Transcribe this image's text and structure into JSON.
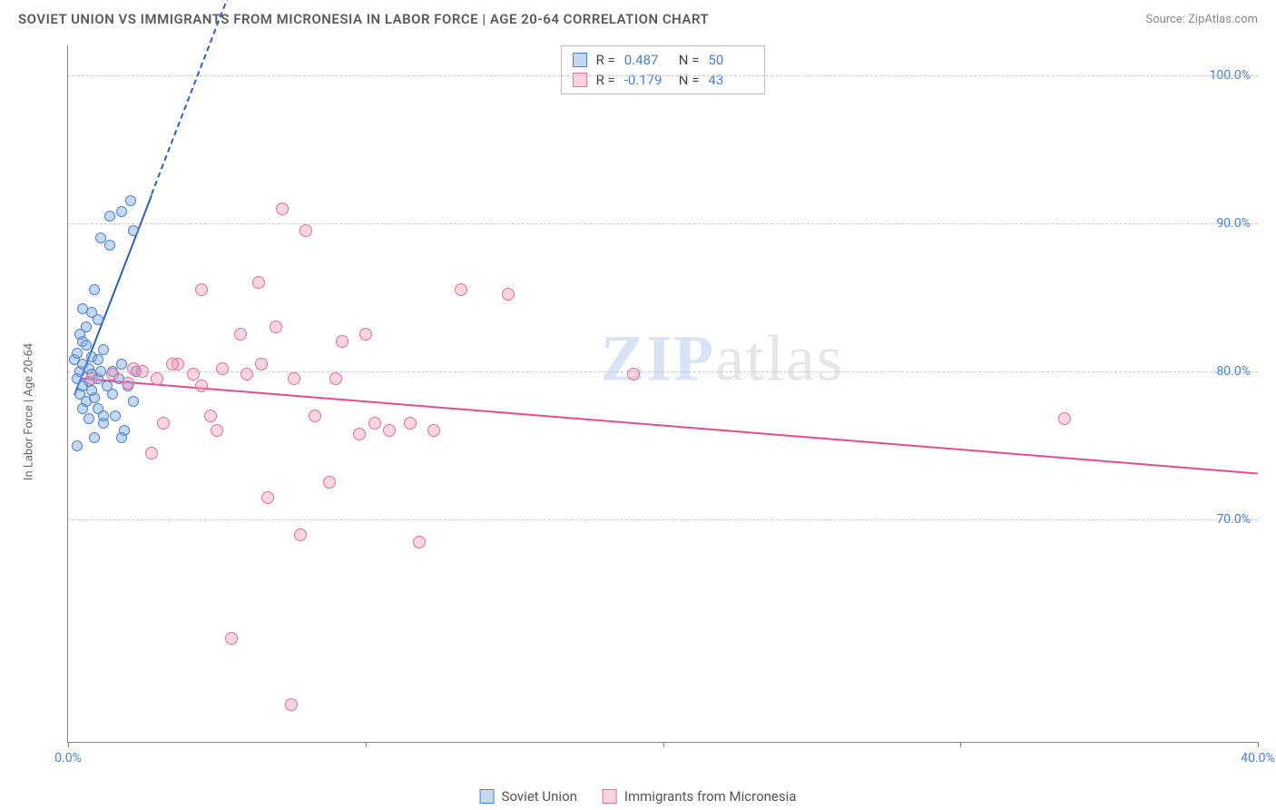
{
  "header": {
    "title": "SOVIET UNION VS IMMIGRANTS FROM MICRONESIA IN LABOR FORCE | AGE 20-64 CORRELATION CHART",
    "source": "Source: ZipAtlas.com"
  },
  "watermark": {
    "bold": "ZIP",
    "light": "atlas"
  },
  "chart": {
    "type": "scatter",
    "background_color": "#ffffff",
    "grid_color": "#cccccc",
    "axis_color": "#888888",
    "text_color": "#666666",
    "tick_label_color": "#4a7fd8",
    "y_axis_label": "In Labor Force | Age 20-64",
    "xlim": [
      0,
      40
    ],
    "ylim": [
      55,
      102
    ],
    "y_ticks": [
      70,
      80,
      90,
      100
    ],
    "y_tick_labels": [
      "70.0%",
      "80.0%",
      "90.0%",
      "100.0%"
    ],
    "x_ticks": [
      0,
      10,
      20,
      30,
      40
    ],
    "x_tick_labels": [
      "0.0%",
      "",
      "",
      "",
      "40.0%"
    ],
    "stats": [
      {
        "r_label": "R =",
        "r_value": "0.487",
        "n_label": "N =",
        "n_value": "50"
      },
      {
        "r_label": "R =",
        "r_value": "-0.179",
        "n_label": "N =",
        "n_value": "43"
      }
    ],
    "series": [
      {
        "name": "Soviet Union",
        "point_fill": "rgba(130,170,225,0.45)",
        "point_stroke": "#4a7fd8",
        "trend_color": "#2c5fc0",
        "trend": {
          "x1": 0.2,
          "y1": 78.5,
          "x2": 2.8,
          "y2": 92.0,
          "extend_x": 5.5,
          "extend_y": 106
        },
        "marker_size": 12,
        "points": [
          [
            0.2,
            80.8
          ],
          [
            0.3,
            79.5
          ],
          [
            0.3,
            81.2
          ],
          [
            0.4,
            80.0
          ],
          [
            0.4,
            78.5
          ],
          [
            0.5,
            82.0
          ],
          [
            0.5,
            79.0
          ],
          [
            0.5,
            80.5
          ],
          [
            0.6,
            83.0
          ],
          [
            0.6,
            78.0
          ],
          [
            0.7,
            80.2
          ],
          [
            0.7,
            79.3
          ],
          [
            0.8,
            84.0
          ],
          [
            0.8,
            79.8
          ],
          [
            0.8,
            81.0
          ],
          [
            0.9,
            78.2
          ],
          [
            0.9,
            85.5
          ],
          [
            1.0,
            79.5
          ],
          [
            1.0,
            80.8
          ],
          [
            1.0,
            77.5
          ],
          [
            1.1,
            89.0
          ],
          [
            1.1,
            80.0
          ],
          [
            1.2,
            76.5
          ],
          [
            1.2,
            81.5
          ],
          [
            1.3,
            79.0
          ],
          [
            1.4,
            88.5
          ],
          [
            1.4,
            90.5
          ],
          [
            1.5,
            78.5
          ],
          [
            1.5,
            80.0
          ],
          [
            1.6,
            77.0
          ],
          [
            1.7,
            79.5
          ],
          [
            1.8,
            90.8
          ],
          [
            1.8,
            80.5
          ],
          [
            1.9,
            76.0
          ],
          [
            2.0,
            79.0
          ],
          [
            2.1,
            91.5
          ],
          [
            2.2,
            78.0
          ],
          [
            2.2,
            89.5
          ],
          [
            2.3,
            80.0
          ],
          [
            0.3,
            75.0
          ],
          [
            0.5,
            77.5
          ],
          [
            0.7,
            76.8
          ],
          [
            0.9,
            75.5
          ],
          [
            1.2,
            77.0
          ],
          [
            0.4,
            82.5
          ],
          [
            0.6,
            81.8
          ],
          [
            0.8,
            78.7
          ],
          [
            1.0,
            83.5
          ],
          [
            1.8,
            75.5
          ],
          [
            0.5,
            84.2
          ]
        ]
      },
      {
        "name": "Immigrants from Micronesia",
        "point_fill": "rgba(240,150,180,0.40)",
        "point_stroke": "#e36f9a",
        "trend_color": "#e84b8a",
        "trend": {
          "x1": 0.5,
          "y1": 79.6,
          "x2": 40,
          "y2": 73.2
        },
        "marker_size": 14,
        "points": [
          [
            0.8,
            79.5
          ],
          [
            1.5,
            79.8
          ],
          [
            2.0,
            79.2
          ],
          [
            2.5,
            80.0
          ],
          [
            2.8,
            74.5
          ],
          [
            3.0,
            79.5
          ],
          [
            3.2,
            76.5
          ],
          [
            3.7,
            80.5
          ],
          [
            4.2,
            79.8
          ],
          [
            4.5,
            85.5
          ],
          [
            4.8,
            77.0
          ],
          [
            5.2,
            80.2
          ],
          [
            5.5,
            62.0
          ],
          [
            5.8,
            82.5
          ],
          [
            6.4,
            86.0
          ],
          [
            6.7,
            71.5
          ],
          [
            7.0,
            83.0
          ],
          [
            7.2,
            91.0
          ],
          [
            7.5,
            57.5
          ],
          [
            7.6,
            79.5
          ],
          [
            8.0,
            89.5
          ],
          [
            8.3,
            77.0
          ],
          [
            7.8,
            69.0
          ],
          [
            8.8,
            72.5
          ],
          [
            9.2,
            82.0
          ],
          [
            9.8,
            75.8
          ],
          [
            10.0,
            82.5
          ],
          [
            10.3,
            76.5
          ],
          [
            10.8,
            76.0
          ],
          [
            11.5,
            76.5
          ],
          [
            11.8,
            68.5
          ],
          [
            12.3,
            76.0
          ],
          [
            13.2,
            85.5
          ],
          [
            14.8,
            85.2
          ],
          [
            19.0,
            79.8
          ],
          [
            33.5,
            76.8
          ],
          [
            4.5,
            79.0
          ],
          [
            5.0,
            76.0
          ],
          [
            6.0,
            79.8
          ],
          [
            9.0,
            79.5
          ],
          [
            3.5,
            80.5
          ],
          [
            2.2,
            80.2
          ],
          [
            6.5,
            80.5
          ]
        ]
      }
    ],
    "bottom_legend": [
      {
        "label": "Soviet Union"
      },
      {
        "label": "Immigrants from Micronesia"
      }
    ]
  }
}
